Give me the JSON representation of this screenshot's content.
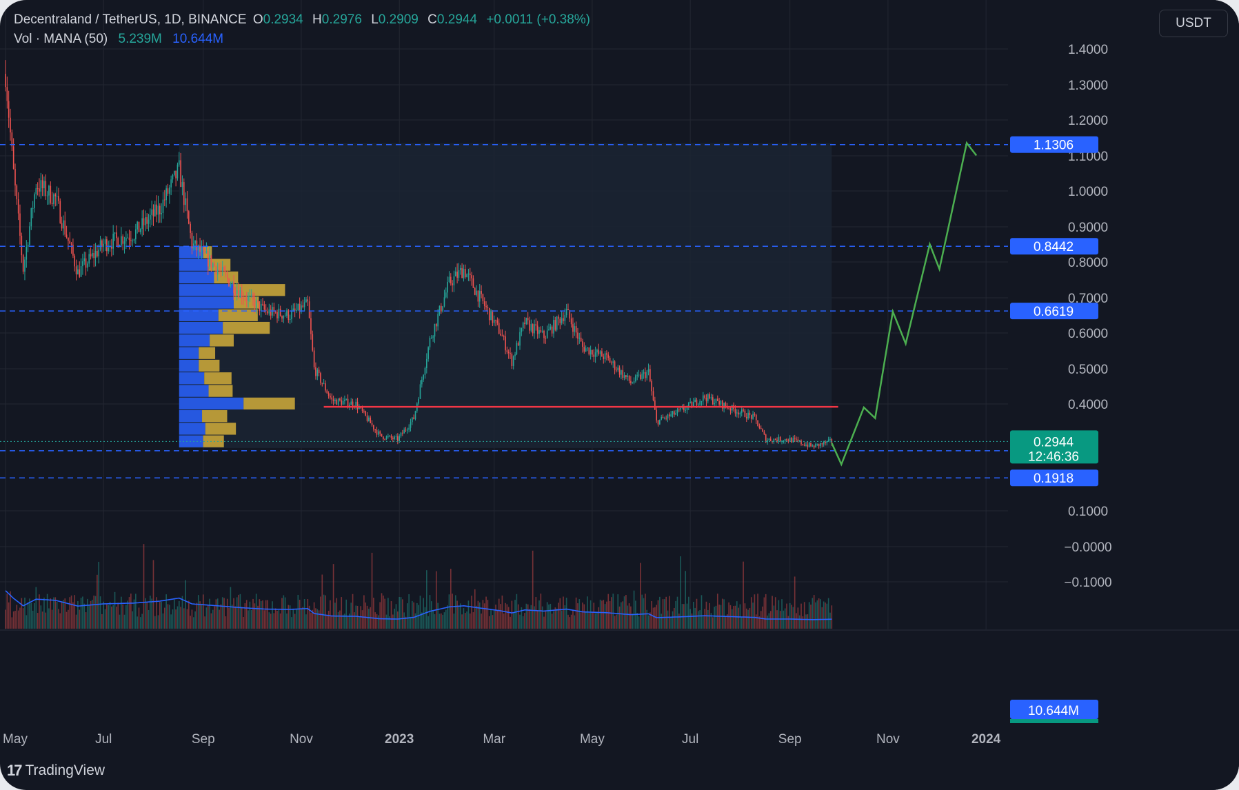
{
  "legend": {
    "symbol": "Decentraland / TetherUS, 1D, BINANCE",
    "o_label": "O",
    "o_value": "0.2934",
    "h_label": "H",
    "h_value": "0.2976",
    "l_label": "L",
    "l_value": "0.2909",
    "c_label": "C",
    "c_value": "0.2944",
    "change": "+0.0011 (+0.38%)",
    "vol_label": "Vol · MANA (50)",
    "vol_value": "5.239M",
    "vol_ma_value": "10.644M"
  },
  "currency_button": "USDT",
  "branding": {
    "logo_glyph": "17",
    "name": "TradingView"
  },
  "colors": {
    "background": "#131722",
    "grid": "#232732",
    "up": "#26a69a",
    "down": "#ef5350",
    "level_line": "#2962ff",
    "resistance_line": "#f23645",
    "projection": "#4caf50",
    "vp_blue": "#2962ff",
    "vp_yellow": "#c8a53a",
    "axis_text": "#b2b5be",
    "last_price_bg": "#089981",
    "label_bg": "#2962ff"
  },
  "chart_data": {
    "type": "candlestick",
    "title": "Decentraland / TetherUS, 1D, BINANCE",
    "y_axis": {
      "ticks": [
        "1.4000",
        "1.3000",
        "1.2000",
        "1.1000",
        "1.0000",
        "0.9000",
        "0.8000",
        "0.7000",
        "0.6000",
        "0.5000",
        "0.4000",
        "0.1000",
        "−0.0000",
        "−0.1000"
      ],
      "range": [
        -0.25,
        1.52
      ]
    },
    "x_axis": {
      "ticks": [
        "May",
        "Jul",
        "Sep",
        "Nov",
        "2023",
        "Mar",
        "May",
        "Jul",
        "Sep",
        "Nov",
        "2024"
      ],
      "range": [
        "2022-05-01",
        "2024-03-01"
      ]
    },
    "horizontal_levels": [
      {
        "price": 1.1306,
        "label": "1.1306",
        "style": "dashed"
      },
      {
        "price": 0.8442,
        "label": "0.8442",
        "style": "dashed"
      },
      {
        "price": 0.6619,
        "label": "0.6619",
        "style": "dashed"
      },
      {
        "price": 0.2682,
        "label": "0.2682",
        "style": "dashed"
      },
      {
        "price": 0.1918,
        "label": "0.1918",
        "style": "dashed"
      }
    ],
    "resistance_line": {
      "price": 0.392,
      "from": "2022-11-15",
      "to": "2023-10-01"
    },
    "last_price": {
      "price": 0.2944,
      "label": "0.2944",
      "countdown": "12:46:36"
    },
    "volume_ma_label": "10.644M",
    "price_path": [
      {
        "x": "2022-05-01",
        "y": 1.33
      },
      {
        "x": "2022-05-06",
        "y": 1.05
      },
      {
        "x": "2022-05-12",
        "y": 0.78
      },
      {
        "x": "2022-05-20",
        "y": 1.02
      },
      {
        "x": "2022-06-01",
        "y": 0.98
      },
      {
        "x": "2022-06-15",
        "y": 0.77
      },
      {
        "x": "2022-07-01",
        "y": 0.85
      },
      {
        "x": "2022-07-20",
        "y": 0.88
      },
      {
        "x": "2022-08-05",
        "y": 0.95
      },
      {
        "x": "2022-08-17",
        "y": 1.06
      },
      {
        "x": "2022-08-25",
        "y": 0.85
      },
      {
        "x": "2022-09-10",
        "y": 0.78
      },
      {
        "x": "2022-09-25",
        "y": 0.71
      },
      {
        "x": "2022-10-10",
        "y": 0.66
      },
      {
        "x": "2022-10-25",
        "y": 0.65
      },
      {
        "x": "2022-11-05",
        "y": 0.68
      },
      {
        "x": "2022-11-09",
        "y": 0.5
      },
      {
        "x": "2022-11-20",
        "y": 0.41
      },
      {
        "x": "2022-12-05",
        "y": 0.4
      },
      {
        "x": "2022-12-20",
        "y": 0.31
      },
      {
        "x": "2022-12-31",
        "y": 0.3
      },
      {
        "x": "2023-01-10",
        "y": 0.36
      },
      {
        "x": "2023-01-20",
        "y": 0.58
      },
      {
        "x": "2023-02-01",
        "y": 0.74
      },
      {
        "x": "2023-02-10",
        "y": 0.78
      },
      {
        "x": "2023-02-20",
        "y": 0.7
      },
      {
        "x": "2023-03-05",
        "y": 0.6
      },
      {
        "x": "2023-03-12",
        "y": 0.52
      },
      {
        "x": "2023-03-20",
        "y": 0.63
      },
      {
        "x": "2023-04-01",
        "y": 0.59
      },
      {
        "x": "2023-04-15",
        "y": 0.66
      },
      {
        "x": "2023-04-25",
        "y": 0.56
      },
      {
        "x": "2023-05-10",
        "y": 0.53
      },
      {
        "x": "2023-05-25",
        "y": 0.46
      },
      {
        "x": "2023-06-05",
        "y": 0.49
      },
      {
        "x": "2023-06-10",
        "y": 0.35
      },
      {
        "x": "2023-06-25",
        "y": 0.38
      },
      {
        "x": "2023-07-10",
        "y": 0.42
      },
      {
        "x": "2023-07-25",
        "y": 0.39
      },
      {
        "x": "2023-08-10",
        "y": 0.36
      },
      {
        "x": "2023-08-17",
        "y": 0.3
      },
      {
        "x": "2023-09-01",
        "y": 0.3
      },
      {
        "x": "2023-09-15",
        "y": 0.28
      },
      {
        "x": "2023-09-27",
        "y": 0.2944
      }
    ],
    "projection_path": [
      {
        "x": "2023-09-27",
        "y": 0.29
      },
      {
        "x": "2023-10-03",
        "y": 0.23
      },
      {
        "x": "2023-10-17",
        "y": 0.39
      },
      {
        "x": "2023-10-24",
        "y": 0.36
      },
      {
        "x": "2023-11-04",
        "y": 0.66
      },
      {
        "x": "2023-11-12",
        "y": 0.57
      },
      {
        "x": "2023-11-27",
        "y": 0.85
      },
      {
        "x": "2023-12-03",
        "y": 0.78
      },
      {
        "x": "2023-12-20",
        "y": 1.135
      },
      {
        "x": "2023-12-26",
        "y": 1.1
      }
    ],
    "volume_profile": {
      "range": {
        "from": "2022-08-17",
        "to": "2023-09-27"
      },
      "rows": [
        {
          "low": 0.8087,
          "high": 0.8443,
          "up": 0.22,
          "down": 0.08
        },
        {
          "low": 0.7732,
          "high": 0.8087,
          "up": 0.27,
          "down": 0.2
        },
        {
          "low": 0.7377,
          "high": 0.7732,
          "up": 0.32,
          "down": 0.22
        },
        {
          "low": 0.7022,
          "high": 0.7377,
          "up": 0.5,
          "down": 0.47
        },
        {
          "low": 0.6667,
          "high": 0.7022,
          "up": 0.5,
          "down": 0.23
        },
        {
          "low": 0.6312,
          "high": 0.6667,
          "up": 0.36,
          "down": 0.36
        },
        {
          "low": 0.5956,
          "high": 0.6312,
          "up": 0.4,
          "down": 0.43
        },
        {
          "low": 0.5601,
          "high": 0.5956,
          "up": 0.28,
          "down": 0.22
        },
        {
          "low": 0.5246,
          "high": 0.5601,
          "up": 0.18,
          "down": 0.15
        },
        {
          "low": 0.4891,
          "high": 0.5246,
          "up": 0.18,
          "down": 0.19
        },
        {
          "low": 0.4536,
          "high": 0.4891,
          "up": 0.23,
          "down": 0.25
        },
        {
          "low": 0.418,
          "high": 0.4536,
          "up": 0.27,
          "down": 0.22
        },
        {
          "low": 0.3825,
          "high": 0.418,
          "up": 0.59,
          "down": 0.47
        },
        {
          "low": 0.347,
          "high": 0.3825,
          "up": 0.21,
          "down": 0.23
        },
        {
          "low": 0.3115,
          "high": 0.347,
          "up": 0.24,
          "down": 0.28
        },
        {
          "low": 0.276,
          "high": 0.3115,
          "up": 0.22,
          "down": 0.19
        }
      ]
    }
  }
}
